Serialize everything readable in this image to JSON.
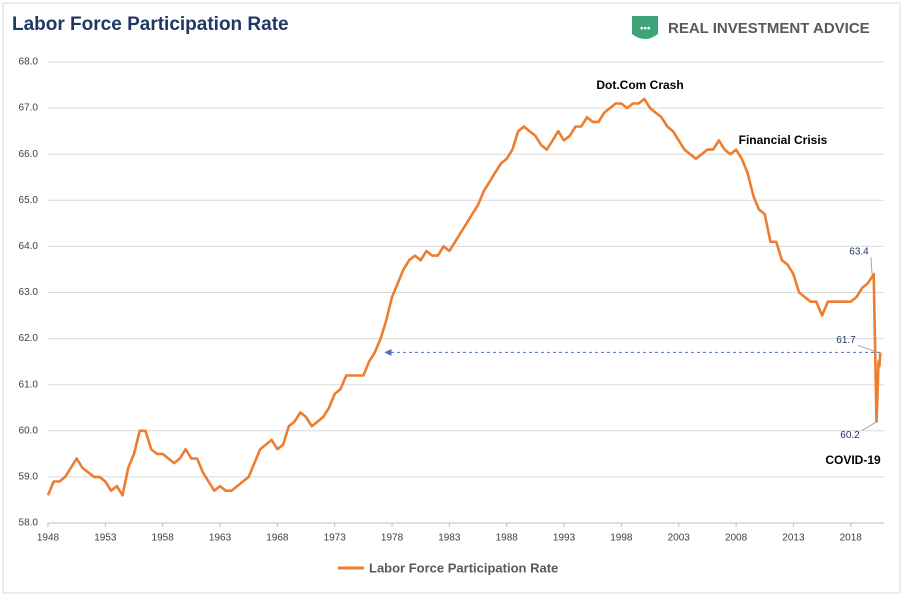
{
  "chart_data": {
    "type": "line",
    "title": "Labor Force Participation Rate",
    "logo_text": "REAL INVESTMENT ADVICE",
    "annotations": [
      "Dot.Com Crash",
      "Financial Crisis",
      "COVID-19"
    ],
    "point_labels": [
      63.4,
      61.7,
      60.2
    ],
    "x": [
      1948,
      1948.5,
      1949,
      1949.5,
      1950,
      1950.5,
      1951,
      1951.5,
      1952,
      1952.5,
      1953,
      1953.5,
      1954,
      1954.5,
      1955,
      1955.5,
      1956,
      1956.5,
      1957,
      1957.5,
      1958,
      1958.5,
      1959,
      1959.5,
      1960,
      1960.5,
      1961,
      1961.5,
      1962,
      1962.5,
      1963,
      1963.5,
      1964,
      1964.5,
      1965,
      1965.5,
      1966,
      1966.5,
      1967,
      1967.5,
      1968,
      1968.5,
      1969,
      1969.5,
      1970,
      1970.5,
      1971,
      1971.5,
      1972,
      1972.5,
      1973,
      1973.5,
      1974,
      1974.5,
      1975,
      1975.5,
      1976,
      1976.5,
      1977,
      1977.5,
      1978,
      1978.5,
      1979,
      1979.5,
      1980,
      1980.5,
      1981,
      1981.5,
      1982,
      1982.5,
      1983,
      1983.5,
      1984,
      1984.5,
      1985,
      1985.5,
      1986,
      1986.5,
      1987,
      1987.5,
      1988,
      1988.5,
      1989,
      1989.5,
      1990,
      1990.5,
      1991,
      1991.5,
      1992,
      1992.5,
      1993,
      1993.5,
      1994,
      1994.5,
      1995,
      1995.5,
      1996,
      1996.5,
      1997,
      1997.5,
      1998,
      1998.5,
      1999,
      1999.5,
      2000,
      2000.5,
      2001,
      2001.5,
      2002,
      2002.5,
      2003,
      2003.5,
      2004,
      2004.5,
      2005,
      2005.5,
      2006,
      2006.5,
      2007,
      2007.5,
      2008,
      2008.5,
      2009,
      2009.5,
      2010,
      2010.5,
      2011,
      2011.5,
      2012,
      2012.5,
      2013,
      2013.5,
      2014,
      2014.5,
      2015,
      2015.5,
      2016,
      2016.5,
      2017,
      2017.5,
      2018,
      2018.5,
      2019,
      2019.5,
      2020,
      2020.25,
      2020.33,
      2020.42,
      2020.5,
      2020.58
    ],
    "series": [
      {
        "name": "Labor Force Participation Rate",
        "color": "#ed7d31",
        "values": [
          58.6,
          58.9,
          58.9,
          59.0,
          59.2,
          59.4,
          59.2,
          59.1,
          59.0,
          59.0,
          58.9,
          58.7,
          58.8,
          58.6,
          59.2,
          59.5,
          60.0,
          60.0,
          59.6,
          59.5,
          59.5,
          59.4,
          59.3,
          59.4,
          59.6,
          59.4,
          59.4,
          59.1,
          58.9,
          58.7,
          58.8,
          58.7,
          58.7,
          58.8,
          58.9,
          59.0,
          59.3,
          59.6,
          59.7,
          59.8,
          59.6,
          59.7,
          60.1,
          60.2,
          60.4,
          60.3,
          60.1,
          60.2,
          60.3,
          60.5,
          60.8,
          60.9,
          61.2,
          61.2,
          61.2,
          61.2,
          61.5,
          61.7,
          62.0,
          62.4,
          62.9,
          63.2,
          63.5,
          63.7,
          63.8,
          63.7,
          63.9,
          63.8,
          63.8,
          64.0,
          63.9,
          64.1,
          64.3,
          64.5,
          64.7,
          64.9,
          65.2,
          65.4,
          65.6,
          65.8,
          65.9,
          66.1,
          66.5,
          66.6,
          66.5,
          66.4,
          66.2,
          66.1,
          66.3,
          66.5,
          66.3,
          66.4,
          66.6,
          66.6,
          66.8,
          66.7,
          66.7,
          66.9,
          67.0,
          67.1,
          67.1,
          67.0,
          67.1,
          67.1,
          67.2,
          67.0,
          66.9,
          66.8,
          66.6,
          66.5,
          66.3,
          66.1,
          66.0,
          65.9,
          66.0,
          66.1,
          66.1,
          66.3,
          66.1,
          66.0,
          66.1,
          65.9,
          65.6,
          65.1,
          64.8,
          64.7,
          64.1,
          64.1,
          63.7,
          63.6,
          63.4,
          63.0,
          62.9,
          62.8,
          62.8,
          62.5,
          62.8,
          62.8,
          62.8,
          62.8,
          62.8,
          62.9,
          63.1,
          63.2,
          63.4,
          60.2,
          60.8,
          61.5,
          61.4,
          61.7
        ]
      }
    ],
    "xlim": [
      1948,
      2020.9
    ],
    "ylim": [
      58,
      68
    ],
    "xticks": [
      1948,
      1953,
      1958,
      1963,
      1968,
      1973,
      1978,
      1983,
      1988,
      1993,
      1998,
      2003,
      2008,
      2013,
      2018
    ],
    "yticks": [
      {
        "value": 58,
        "label": "58.0"
      },
      {
        "value": 59,
        "label": "59.0"
      },
      {
        "value": 60,
        "label": "60.0"
      },
      {
        "value": 61,
        "label": "61.0"
      },
      {
        "value": 62,
        "label": "62.0"
      },
      {
        "value": 63,
        "label": "63.0"
      },
      {
        "value": 64,
        "label": "64.0"
      },
      {
        "value": 65,
        "label": "65.0"
      },
      {
        "value": 66,
        "label": "66.0"
      },
      {
        "value": 67,
        "label": "67.0"
      },
      {
        "value": 68,
        "label": "68.0"
      }
    ],
    "grid": true
  }
}
